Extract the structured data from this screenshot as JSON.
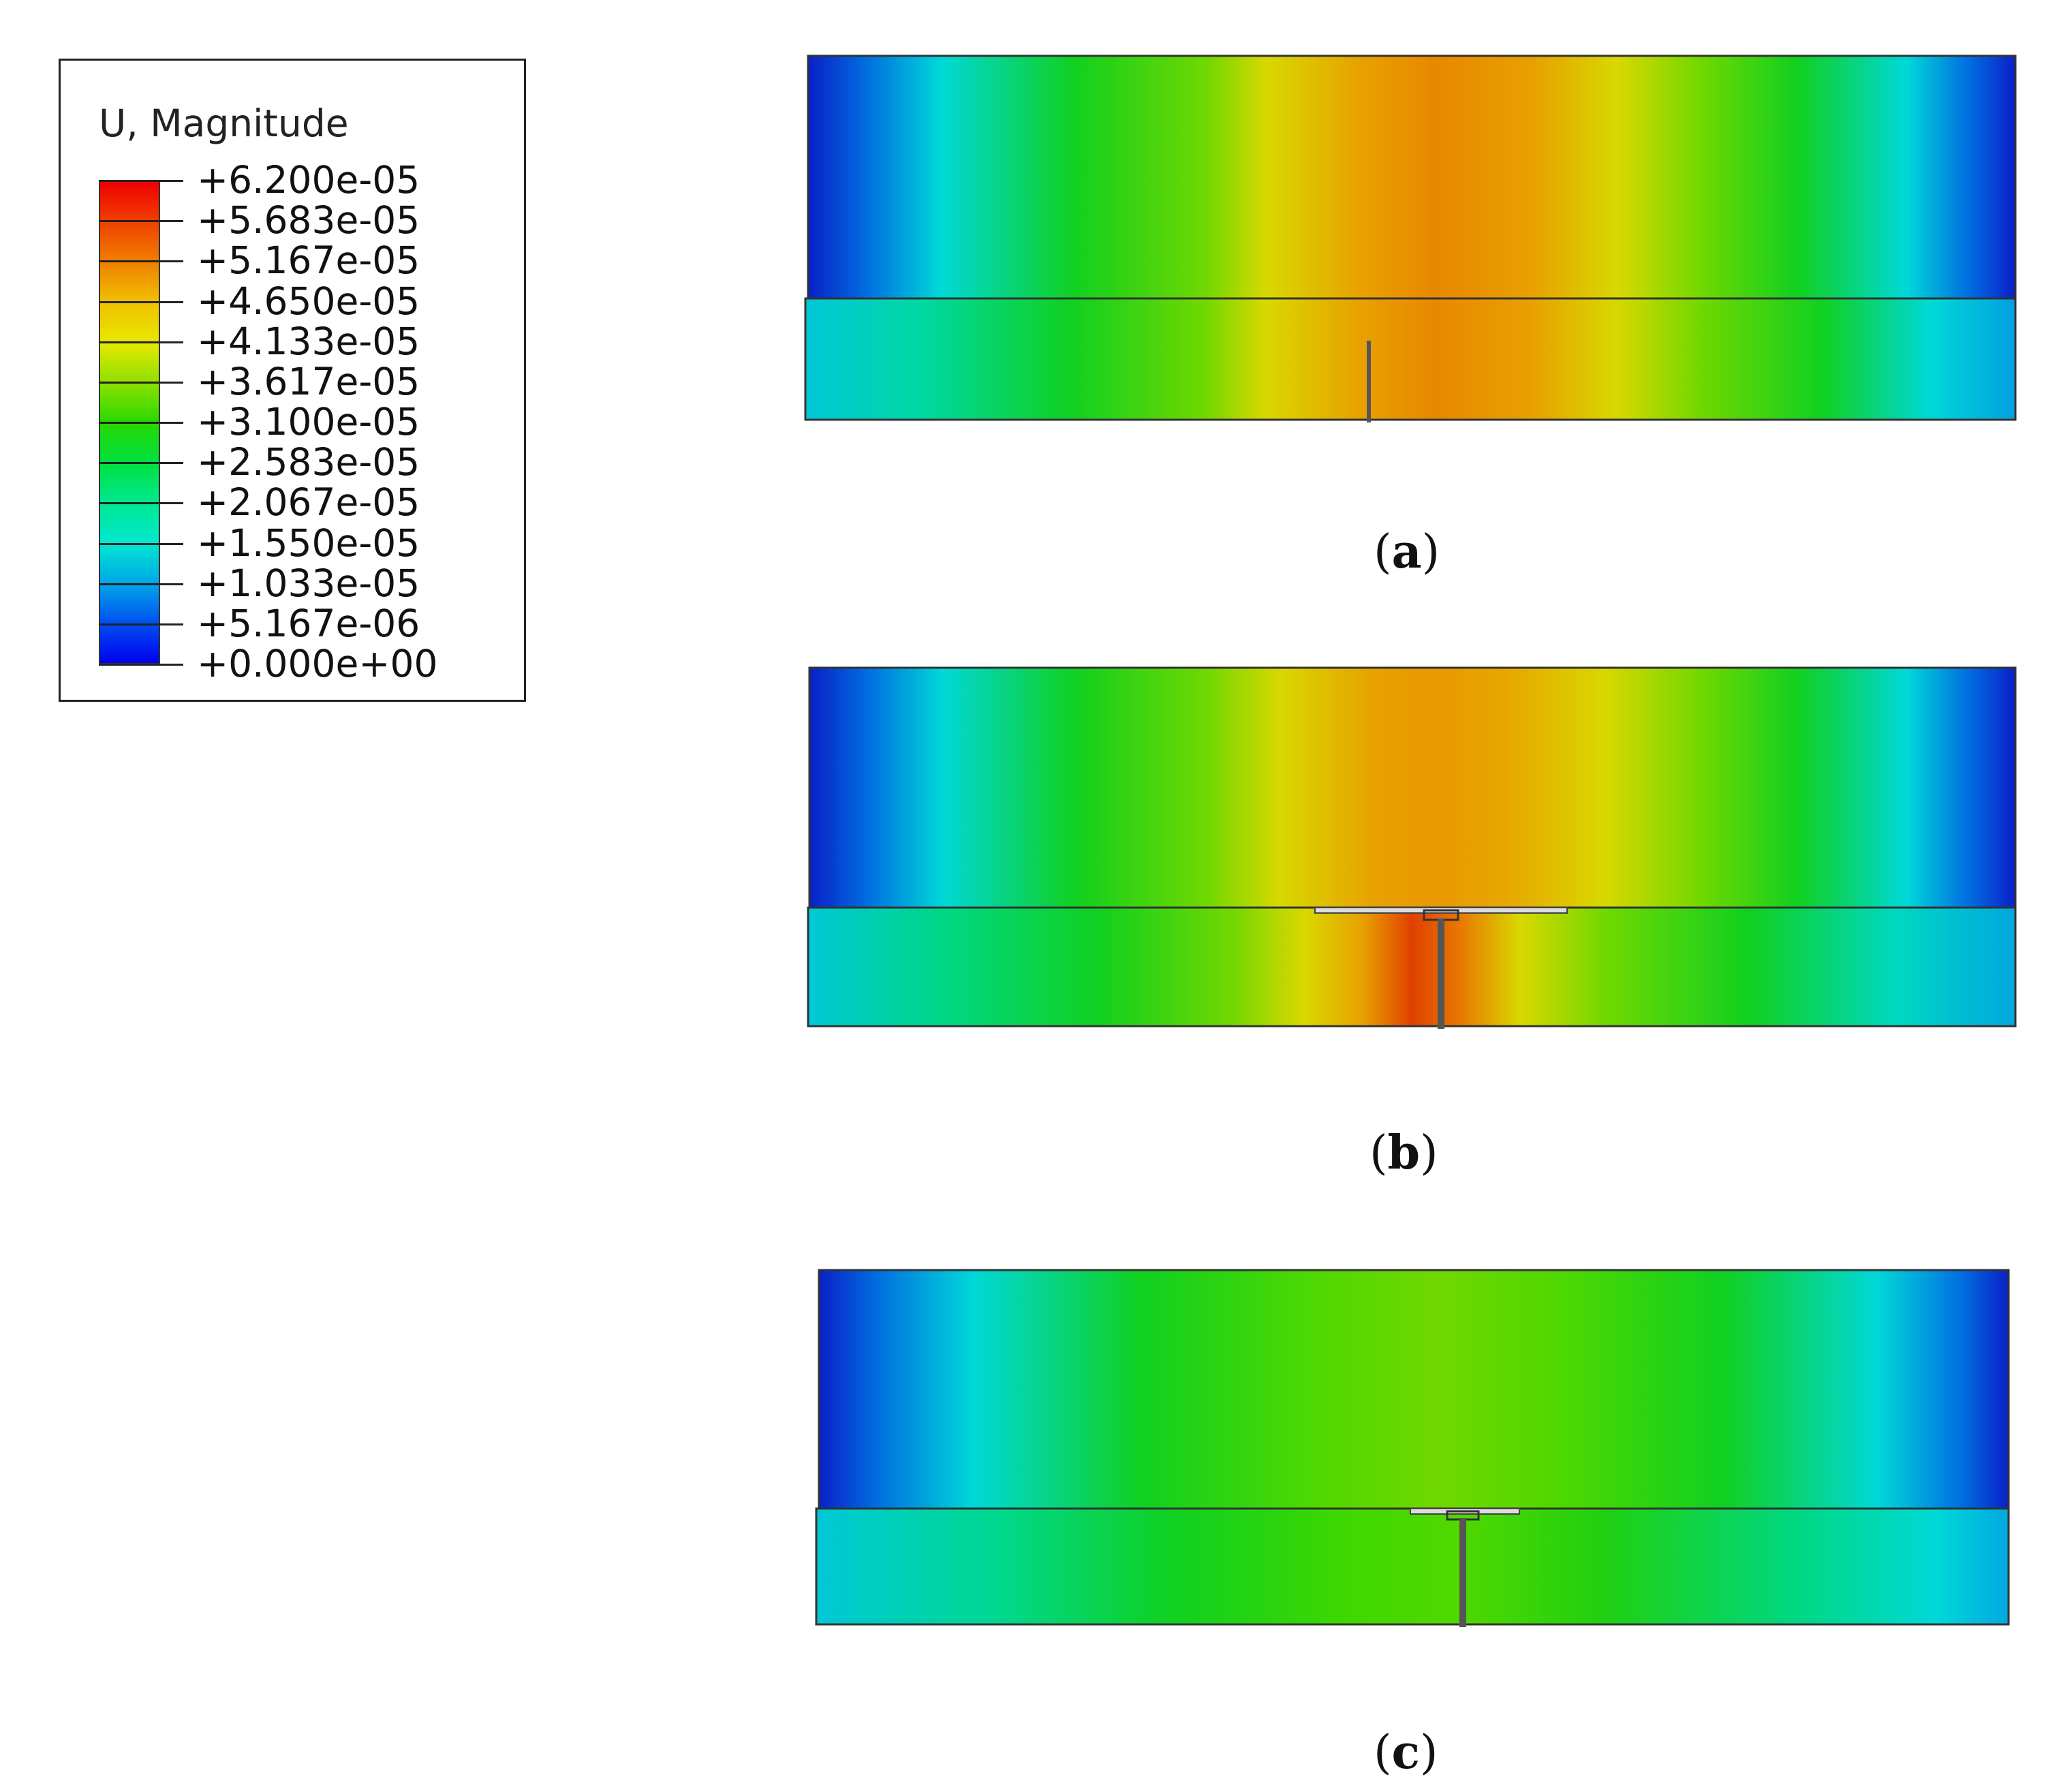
{
  "legend": {
    "title": "U, Magnitude",
    "labels": [
      "+6.200e-05",
      "+5.683e-05",
      "+5.167e-05",
      "+4.650e-05",
      "+4.133e-05",
      "+3.617e-05",
      "+3.100e-05",
      "+2.583e-05",
      "+2.067e-05",
      "+1.550e-05",
      "+1.033e-05",
      "+5.167e-06",
      "+0.000e+00"
    ],
    "colors": [
      "#0000ee",
      "#0050f0",
      "#00a8e8",
      "#00e8d0",
      "#00e890",
      "#00e040",
      "#28d800",
      "#90e000",
      "#e8e800",
      "#f0c000",
      "#f08000",
      "#f04000",
      "#ee0000"
    ]
  },
  "panels": [
    {
      "id": "a",
      "caption": "a",
      "colors": {
        "edge": "#0a30d0",
        "side": "#00d8d8",
        "mid": "#10d020",
        "inner": "#d8d800",
        "center": "#e88c00"
      }
    },
    {
      "id": "b",
      "caption": "b",
      "colors": {
        "edge": "#0a30d0",
        "side": "#00d8d8",
        "mid": "#10d020",
        "inner": "#d8d800",
        "center": "#e89000",
        "hot": "#e04000"
      }
    },
    {
      "id": "c",
      "caption": "c",
      "colors": {
        "edge": "#0a30d0",
        "side": "#00d8d8",
        "mid": "#10d020",
        "inner": "#60d800",
        "center": "#70d800"
      }
    }
  ]
}
